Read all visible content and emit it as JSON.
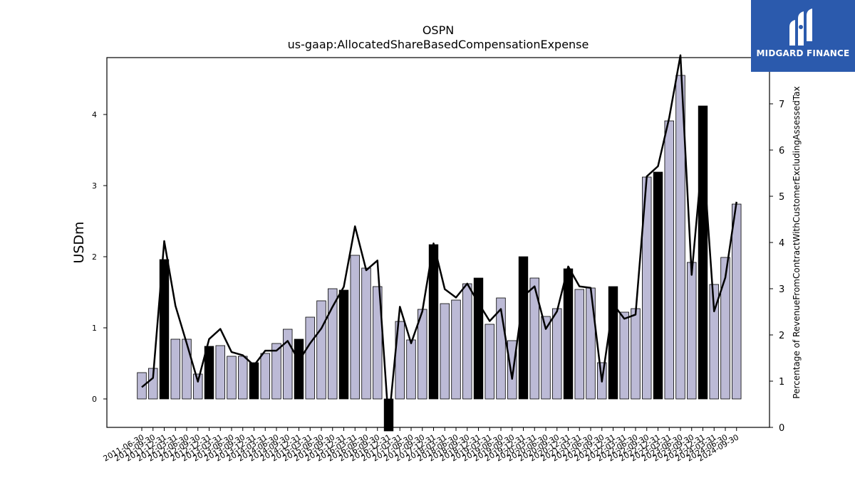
{
  "chart_data": {
    "type": "bar",
    "title": "OSPN",
    "subtitle": "us-gaap:AllocatedShareBasedCompensationExpense",
    "ylabel": "USDm",
    "ylabel_right": "Percentage of RevenueFromContractWithCustomerExcludingAssessedTax",
    "ylim": [
      -0.4,
      4.8
    ],
    "ylim_right": [
      0,
      8
    ],
    "yticks": [
      0,
      1,
      2,
      3,
      4
    ],
    "yticks_right": [
      0,
      1,
      2,
      3,
      4,
      5,
      6,
      7
    ],
    "grid": false,
    "bar_color": "#bcbad6",
    "highlight_color": "#000000",
    "line_color": "#000000",
    "categories": [
      "2011-06-30",
      "2011-09-30",
      "2011-12-31",
      "2012-03-31",
      "2012-06-30",
      "2012-09-30",
      "2012-12-31",
      "2013-03-31",
      "2013-06-30",
      "2013-09-30",
      "2013-12-31",
      "2014-03-31",
      "2014-06-30",
      "2014-09-30",
      "2014-12-31",
      "2015-03-31",
      "2015-06-30",
      "2015-09-30",
      "2015-12-31",
      "2016-03-31",
      "2016-06-30",
      "2016-09-30",
      "2016-12-31",
      "2017-03-31",
      "2017-06-30",
      "2017-09-30",
      "2017-12-31",
      "2018-03-31",
      "2018-06-30",
      "2018-09-30",
      "2018-12-31",
      "2019-03-31",
      "2019-06-30",
      "2019-09-30",
      "2019-12-31",
      "2020-03-31",
      "2020-06-30",
      "2020-09-30",
      "2020-12-31",
      "2021-03-31",
      "2021-06-30",
      "2021-09-30",
      "2021-12-31",
      "2022-03-31",
      "2022-06-30",
      "2022-09-30",
      "2022-12-31",
      "2023-03-31",
      "2023-06-30",
      "2023-09-30",
      "2023-12-31",
      "2024-03-31",
      "2024-06-30",
      "2024-09-30"
    ],
    "series": [
      {
        "values": [
          0.37,
          0.43,
          1.96,
          0.84,
          0.84,
          0.35,
          0.74,
          0.75,
          0.6,
          0.6,
          0.51,
          0.64,
          0.78,
          0.98,
          0.84,
          1.15,
          1.38,
          1.55,
          1.53,
          2.02,
          1.84,
          1.58,
          -0.45,
          1.09,
          0.83,
          1.26,
          2.17,
          1.34,
          1.39,
          1.62,
          1.7,
          1.05,
          1.42,
          0.82,
          2.0,
          1.7,
          1.16,
          1.27,
          1.83,
          1.54,
          1.56,
          0.51,
          1.58,
          1.22,
          1.27,
          3.12,
          3.19,
          3.91,
          4.55,
          1.92,
          4.12,
          1.61,
          1.99,
          2.74
        ],
        "highlight": [
          false,
          false,
          true,
          false,
          false,
          false,
          true,
          false,
          false,
          false,
          true,
          false,
          false,
          false,
          true,
          false,
          false,
          false,
          true,
          false,
          false,
          false,
          true,
          false,
          false,
          false,
          true,
          false,
          false,
          false,
          true,
          false,
          false,
          false,
          true,
          false,
          false,
          false,
          true,
          false,
          false,
          false,
          true,
          false,
          false,
          false,
          true,
          false,
          false,
          false,
          true,
          false,
          false,
          false
        ]
      },
      {
        "axis": "right",
        "values": [
          0.87,
          1.07,
          4.03,
          2.63,
          1.82,
          0.99,
          1.91,
          2.13,
          1.63,
          1.56,
          1.34,
          1.66,
          1.66,
          1.87,
          1.44,
          1.82,
          2.14,
          2.61,
          3.04,
          4.35,
          3.4,
          3.61,
          0.1,
          2.61,
          1.82,
          2.51,
          3.98,
          2.99,
          2.81,
          3.11,
          2.69,
          2.3,
          2.56,
          1.05,
          2.84,
          3.05,
          2.13,
          2.51,
          3.48,
          3.05,
          3.02,
          0.99,
          2.67,
          2.35,
          2.44,
          5.43,
          5.65,
          6.7,
          8.05,
          3.3,
          6.0,
          2.51,
          3.24,
          4.88
        ]
      }
    ]
  },
  "logo": {
    "text": "MIDGARD FINANCE"
  }
}
